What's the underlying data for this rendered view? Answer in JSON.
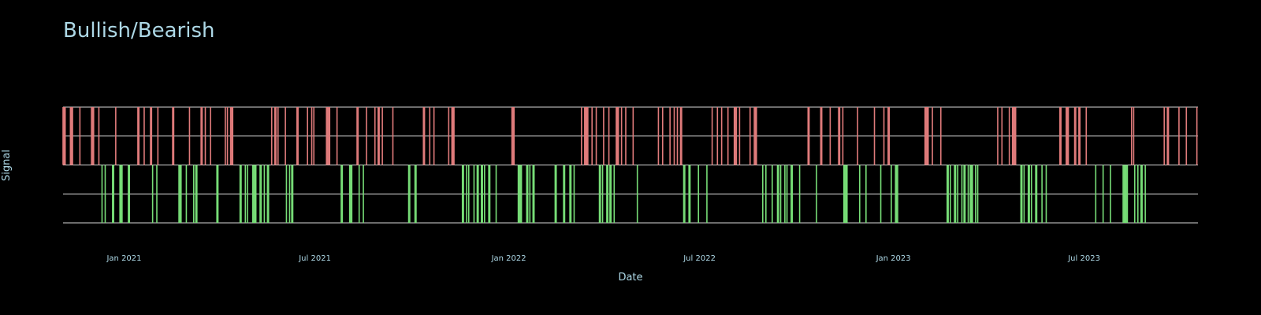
{
  "chart_data": {
    "type": "bar",
    "title": "Bullish/Bearish",
    "xlabel": "Date",
    "ylabel": "Signal",
    "x_range": [
      "2020-11-04",
      "2023-10-17"
    ],
    "ylim": [
      -1,
      1
    ],
    "grid": true,
    "tick_labels": [
      "Jan 2021",
      "Jul 2021",
      "Jan 2022",
      "Jul 2022",
      "Jan 2023",
      "Jul 2023"
    ],
    "tick_dates": [
      "2021-01-01",
      "2021-07-01",
      "2022-01-01",
      "2022-07-01",
      "2023-01-01",
      "2023-07-01"
    ],
    "colors": {
      "bearish": "#e07b7b",
      "bullish": "#77dd77",
      "grid": "#d8d8d8",
      "text": "#add8e6",
      "background": "#000000"
    },
    "series": [
      {
        "value": 1,
        "dates": [
          "2020-11-04",
          "2020-11-05",
          "2020-11-06",
          "2020-11-11",
          "2020-11-12",
          "2020-11-13",
          "2020-11-20",
          "2020-12-01",
          "2020-12-02",
          "2020-12-03",
          "2020-12-08",
          "2020-12-24",
          "2021-01-14",
          "2021-01-15",
          "2021-01-20",
          "2021-01-26",
          "2021-01-27",
          "2021-02-02",
          "2021-02-16",
          "2021-02-17",
          "2021-03-04",
          "2021-03-15",
          "2021-03-16",
          "2021-03-19",
          "2021-03-24",
          "2021-04-07",
          "2021-04-09",
          "2021-04-12",
          "2021-04-13",
          "2021-04-14",
          "2021-05-21",
          "2021-05-24",
          "2021-05-25",
          "2021-05-27",
          "2021-06-03",
          "2021-06-14",
          "2021-06-15",
          "2021-06-24",
          "2021-06-28",
          "2021-06-30",
          "2021-07-12",
          "2021-07-13",
          "2021-07-14",
          "2021-07-15",
          "2021-07-22",
          "2021-08-10",
          "2021-08-11",
          "2021-08-19",
          "2021-08-27",
          "2021-08-30",
          "2021-08-31",
          "2021-09-03",
          "2021-09-13",
          "2021-10-12",
          "2021-10-13",
          "2021-10-18",
          "2021-10-22",
          "2021-11-05",
          "2021-11-08",
          "2021-11-09",
          "2021-11-10",
          "2022-01-04",
          "2022-01-05",
          "2022-01-06",
          "2022-03-11",
          "2022-03-14",
          "2022-03-15",
          "2022-03-16",
          "2022-03-17",
          "2022-03-21",
          "2022-03-25",
          "2022-04-01",
          "2022-04-06",
          "2022-04-13",
          "2022-04-14",
          "2022-04-15",
          "2022-04-18",
          "2022-04-22",
          "2022-04-29",
          "2022-05-23",
          "2022-05-27",
          "2022-06-03",
          "2022-06-07",
          "2022-06-10",
          "2022-06-13",
          "2022-06-14",
          "2022-07-13",
          "2022-07-18",
          "2022-07-22",
          "2022-07-28",
          "2022-08-03",
          "2022-08-04",
          "2022-08-05",
          "2022-08-08",
          "2022-08-18",
          "2022-08-22",
          "2022-08-23",
          "2022-08-24",
          "2022-10-12",
          "2022-10-13",
          "2022-10-24",
          "2022-10-25",
          "2022-11-02",
          "2022-11-10",
          "2022-11-11",
          "2022-11-14",
          "2022-11-28",
          "2022-12-14",
          "2022-12-23",
          "2022-12-27",
          "2022-12-28",
          "2023-01-31",
          "2023-02-01",
          "2023-02-02",
          "2023-02-03",
          "2023-02-07",
          "2023-02-15",
          "2023-04-10",
          "2023-04-14",
          "2023-04-21",
          "2023-04-24",
          "2023-04-25",
          "2023-04-26",
          "2023-04-27",
          "2023-06-08",
          "2023-06-09",
          "2023-06-14",
          "2023-06-15",
          "2023-06-16",
          "2023-06-22",
          "2023-06-23",
          "2023-06-26",
          "2023-06-27",
          "2023-07-03",
          "2023-08-15",
          "2023-08-17",
          "2023-09-15",
          "2023-09-18",
          "2023-09-19",
          "2023-09-29",
          "2023-10-06",
          "2023-10-16"
        ]
      },
      {
        "value": -1,
        "dates": [
          "2020-12-11",
          "2020-12-14",
          "2020-12-21",
          "2020-12-22",
          "2020-12-28",
          "2020-12-29",
          "2020-12-30",
          "2021-01-05",
          "2021-01-06",
          "2021-01-28",
          "2021-02-01",
          "2021-02-22",
          "2021-02-23",
          "2021-02-24",
          "2021-03-01",
          "2021-03-08",
          "2021-03-10",
          "2021-03-11",
          "2021-03-30",
          "2021-03-31",
          "2021-04-21",
          "2021-04-22",
          "2021-04-26",
          "2021-04-28",
          "2021-05-03",
          "2021-05-04",
          "2021-05-05",
          "2021-05-06",
          "2021-05-10",
          "2021-05-11",
          "2021-05-14",
          "2021-05-17",
          "2021-05-18",
          "2021-06-04",
          "2021-06-07",
          "2021-06-09",
          "2021-06-10",
          "2021-07-26",
          "2021-07-27",
          "2021-08-03",
          "2021-08-04",
          "2021-08-05",
          "2021-08-12",
          "2021-08-16",
          "2021-09-28",
          "2021-09-29",
          "2021-10-04",
          "2021-10-05",
          "2021-11-18",
          "2021-11-19",
          "2021-11-22",
          "2021-11-24",
          "2021-11-29",
          "2021-12-02",
          "2021-12-03",
          "2021-12-06",
          "2021-12-07",
          "2021-12-09",
          "2021-12-13",
          "2021-12-14",
          "2021-12-20",
          "2022-01-10",
          "2022-01-11",
          "2022-01-12",
          "2022-01-13",
          "2022-01-18",
          "2022-01-19",
          "2022-01-21",
          "2022-01-24",
          "2022-01-25",
          "2022-02-14",
          "2022-02-15",
          "2022-02-22",
          "2022-02-23",
          "2022-02-28",
          "2022-03-01",
          "2022-03-04",
          "2022-03-28",
          "2022-03-29",
          "2022-03-31",
          "2022-04-04",
          "2022-04-05",
          "2022-04-07",
          "2022-04-08",
          "2022-04-11",
          "2022-05-03",
          "2022-06-16",
          "2022-06-17",
          "2022-06-21",
          "2022-06-22",
          "2022-06-30",
          "2022-07-08",
          "2022-08-30",
          "2022-09-02",
          "2022-09-08",
          "2022-09-13",
          "2022-09-14",
          "2022-09-16",
          "2022-09-20",
          "2022-09-22",
          "2022-09-26",
          "2022-09-27",
          "2022-10-04",
          "2022-10-20",
          "2022-11-15",
          "2022-11-16",
          "2022-11-17",
          "2022-11-18",
          "2022-11-30",
          "2022-12-06",
          "2022-12-20",
          "2022-12-30",
          "2023-01-03",
          "2023-01-04",
          "2023-01-05",
          "2023-02-21",
          "2023-02-22",
          "2023-02-24",
          "2023-02-28",
          "2023-03-01",
          "2023-03-03",
          "2023-03-07",
          "2023-03-09",
          "2023-03-10",
          "2023-03-13",
          "2023-03-15",
          "2023-03-16",
          "2023-03-17",
          "2023-03-20",
          "2023-03-22",
          "2023-05-02",
          "2023-05-03",
          "2023-05-05",
          "2023-05-09",
          "2023-05-10",
          "2023-05-12",
          "2023-05-16",
          "2023-05-17",
          "2023-05-22",
          "2023-05-26",
          "2023-07-12",
          "2023-07-19",
          "2023-07-26",
          "2023-08-07",
          "2023-08-08",
          "2023-08-09",
          "2023-08-10",
          "2023-08-11",
          "2023-08-18",
          "2023-08-21",
          "2023-08-24",
          "2023-08-25",
          "2023-08-28"
        ]
      }
    ]
  }
}
